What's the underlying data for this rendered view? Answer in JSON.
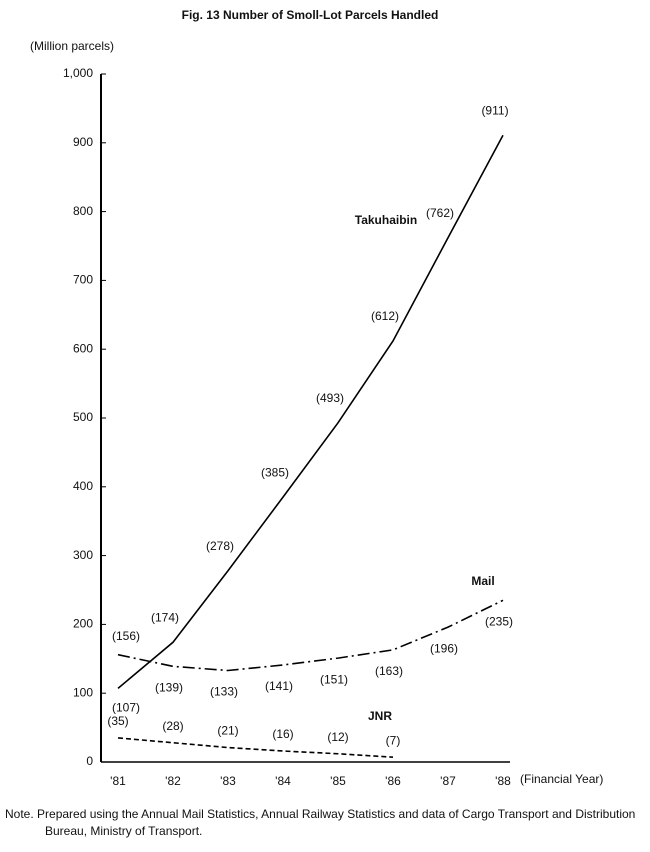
{
  "chart_data": {
    "type": "line",
    "title": "Fig. 13 Number of Smoll-Lot Parcels Handled",
    "y_label": "(Million parcels)",
    "x_label": "(Financial Year)",
    "categories": [
      "'81",
      "'82",
      "'83",
      "'84",
      "'85",
      "'86",
      "'87",
      "'88"
    ],
    "series": [
      {
        "name": "Takuhaibin",
        "color": "#000000",
        "dash": "solid",
        "values": [
          107,
          174,
          278,
          385,
          493,
          612,
          762,
          911
        ],
        "value_labels": [
          "(107)",
          "(174)",
          "(278)",
          "(385)",
          "(493)",
          "(612)",
          "(762)",
          "(911)"
        ]
      },
      {
        "name": "Mail",
        "color": "#000000",
        "dash": "dashdot",
        "values": [
          156,
          139,
          133,
          141,
          151,
          163,
          196,
          235
        ],
        "value_labels": [
          "(156)",
          "(139)",
          "(133)",
          "(141)",
          "(151)",
          "(163)",
          "(196)",
          "(235)"
        ]
      },
      {
        "name": "JNR",
        "color": "#000000",
        "dash": "dashed",
        "values": [
          35,
          28,
          21,
          16,
          12,
          7,
          null,
          null
        ],
        "value_labels": [
          "(35)",
          "(28)",
          "(21)",
          "(16)",
          "(12)",
          "(7)",
          null,
          null
        ]
      }
    ],
    "ylim": [
      0,
      1000
    ],
    "yticks": [
      0,
      100,
      200,
      300,
      400,
      500,
      600,
      700,
      800,
      900,
      {
        "value": 1000,
        "label": "1,000"
      }
    ],
    "grid": false
  },
  "note": "Note. Prepared using the Annual Mail Statistics, Annual Railway Statistics and data of Cargo Transport and Distribution Bureau, Ministry of Transport."
}
